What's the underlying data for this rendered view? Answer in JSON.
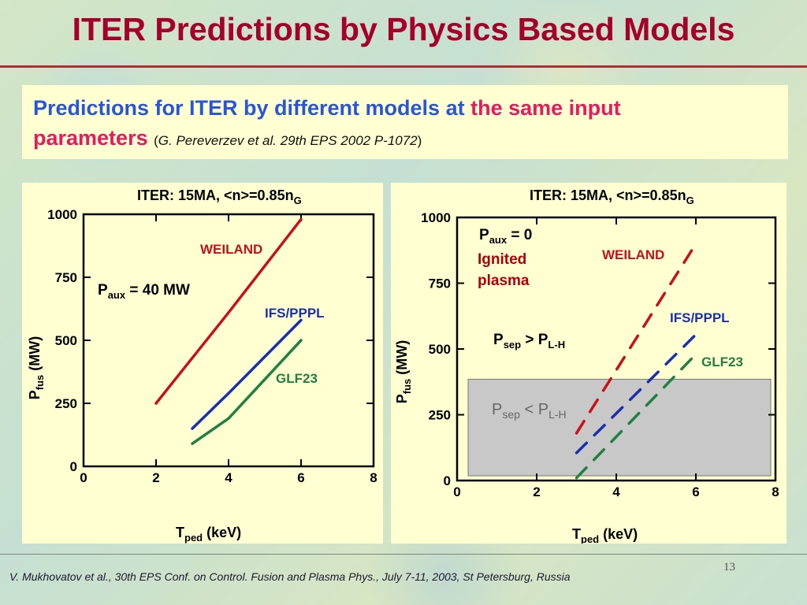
{
  "slide": {
    "title": "ITER Predictions by Physics Based Models",
    "subtitle_part1": "Predictions for ITER by different models at",
    "subtitle_part2": "the same input",
    "subtitle_part3": "parameters",
    "subtitle_paren_open": "(",
    "subtitle_ref": "G. Pereverzev et al. 29th EPS 2002 P-1072",
    "subtitle_paren_close": ")",
    "footer": "V. Mukhovatov et al., 30th EPS Conf. on Control. Fusion and Plasma Phys., July 7-11, 2003, St Petersburg, Russia",
    "page_number": "13"
  },
  "colors": {
    "title": "#a5002a",
    "weiland": "#c8101a",
    "ifs_pppl": "#1a2fb0",
    "glf23": "#1f8040",
    "grey_region": "#c8c8c8"
  },
  "chart_data": [
    {
      "type": "line",
      "title_main": "ITER: 15MA, <n>=0.85n",
      "title_sub": "G",
      "xlabel_main": "T",
      "xlabel_sub": "ped",
      "xlabel_unit": " (keV)",
      "ylabel_main": "P",
      "ylabel_sub": "fus",
      "ylabel_unit": " (MW)",
      "xlim": [
        0,
        8
      ],
      "ylim": [
        0,
        1000
      ],
      "xticks": [
        "0",
        "2",
        "4",
        "6",
        "8"
      ],
      "yticks": [
        "0",
        "250",
        "500",
        "750",
        "1000"
      ],
      "annotation": {
        "main": "P",
        "sub": "aux",
        "rest": " = 40 MW"
      },
      "series": [
        {
          "name": "WEILAND",
          "color": "#c8101a",
          "x": [
            2,
            4,
            6
          ],
          "y": [
            250,
            610,
            980
          ]
        },
        {
          "name": "IFS/PPPL",
          "color": "#1a2fb0",
          "x": [
            3,
            4,
            6
          ],
          "y": [
            150,
            290,
            580
          ]
        },
        {
          "name": "GLF23",
          "color": "#1f8040",
          "x": [
            3,
            4,
            6
          ],
          "y": [
            90,
            190,
            500
          ]
        }
      ]
    },
    {
      "type": "line",
      "title_main": "ITER: 15MA, <n>=0.85n",
      "title_sub": "G",
      "xlabel_main": "T",
      "xlabel_sub": "ped",
      "xlabel_unit": " (keV)",
      "ylabel_main": "P",
      "ylabel_sub": "fus",
      "ylabel_unit": " (MW)",
      "xlim": [
        0,
        8
      ],
      "ylim": [
        0,
        1000
      ],
      "xticks": [
        "0",
        "2",
        "4",
        "6",
        "8"
      ],
      "yticks": [
        "0",
        "250",
        "500",
        "750",
        "1000"
      ],
      "annotation_paux": {
        "main": "P",
        "sub": "aux",
        "rest": " = 0"
      },
      "annotation_ignited_1": "Ignited",
      "annotation_ignited_2": "plasma",
      "annotation_sep_above": {
        "main": "P",
        "sub": "sep",
        "op": " > P",
        "sub2": "L-H"
      },
      "annotation_sep_below": {
        "main": "P",
        "sub": "sep",
        "op": " < P",
        "sub2": "L-H"
      },
      "shaded_region_y": [
        0,
        385
      ],
      "series": [
        {
          "name": "WEILAND",
          "color": "#c8101a",
          "x": [
            3,
            6
          ],
          "y": [
            180,
            900
          ]
        },
        {
          "name": "IFS/PPPL",
          "color": "#1a2fb0",
          "x": [
            3,
            6
          ],
          "y": [
            105,
            555
          ]
        },
        {
          "name": "GLF23",
          "color": "#1f8040",
          "x": [
            3,
            6
          ],
          "y": [
            10,
            480
          ]
        }
      ]
    }
  ]
}
